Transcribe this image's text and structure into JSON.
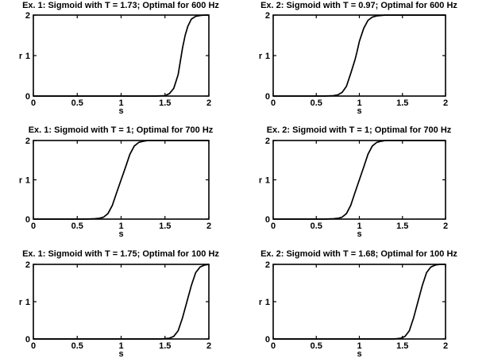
{
  "chart_data": [
    {
      "type": "line",
      "title": "Ex. 1: Sigmoid with T = 1.73; Optimal for 600 Hz",
      "xlabel": "s",
      "ylabel": "r",
      "xlim": [
        0,
        2
      ],
      "ylim": [
        0,
        2
      ],
      "xticks": [
        "0",
        "0.5",
        "1",
        "1.5",
        "2"
      ],
      "yticks": [
        "0",
        "1",
        "2"
      ],
      "grid": false,
      "series": [
        {
          "x": [
            0,
            1.4,
            1.5,
            1.55,
            1.6,
            1.65,
            1.7,
            1.73,
            1.76,
            1.8,
            1.85,
            1.9,
            1.95,
            2
          ],
          "y": [
            0,
            0,
            0.01,
            0.06,
            0.19,
            0.53,
            1.19,
            1.5,
            1.72,
            1.9,
            1.97,
            1.99,
            2,
            2
          ]
        }
      ]
    },
    {
      "type": "line",
      "title": "Ex. 2: Sigmoid with T = 0.97; Optimal for 600 Hz",
      "xlabel": "s",
      "ylabel": "r",
      "xlim": [
        0,
        2
      ],
      "ylim": [
        0,
        2
      ],
      "xticks": [
        "0",
        "0.5",
        "1",
        "1.5",
        "2"
      ],
      "yticks": [
        "0",
        "1",
        "2"
      ],
      "grid": false,
      "series": [
        {
          "x": [
            0,
            0.6,
            0.7,
            0.75,
            0.8,
            0.85,
            0.9,
            0.95,
            0.97,
            1.0,
            1.05,
            1.1,
            1.15,
            1.2,
            1.3,
            2
          ],
          "y": [
            0,
            0,
            0.01,
            0.03,
            0.09,
            0.24,
            0.56,
            0.9,
            1.07,
            1.35,
            1.67,
            1.87,
            1.95,
            1.98,
            2,
            2
          ]
        }
      ]
    },
    {
      "type": "line",
      "title": "Ex. 1: Sigmoid with T = 1; Optimal for 700 Hz",
      "xlabel": "s",
      "ylabel": "r",
      "xlim": [
        0,
        2
      ],
      "ylim": [
        0,
        2
      ],
      "xticks": [
        "0",
        "0.5",
        "1",
        "1.5",
        "2"
      ],
      "yticks": [
        "0",
        "1",
        "2"
      ],
      "grid": false,
      "series": [
        {
          "x": [
            0,
            0.6,
            0.7,
            0.75,
            0.8,
            0.85,
            0.9,
            0.95,
            1.0,
            1.05,
            1.1,
            1.15,
            1.2,
            1.25,
            1.3,
            2
          ],
          "y": [
            0,
            0,
            0.01,
            0.02,
            0.05,
            0.14,
            0.35,
            0.68,
            1.0,
            1.32,
            1.65,
            1.86,
            1.95,
            1.98,
            2,
            2
          ]
        }
      ]
    },
    {
      "type": "line",
      "title": "Ex. 2: Sigmoid with T = 1; Optimal for 700 Hz",
      "xlabel": "s",
      "ylabel": "r",
      "xlim": [
        0,
        2
      ],
      "ylim": [
        0,
        2
      ],
      "xticks": [
        "0",
        "0.5",
        "1",
        "1.5",
        "2"
      ],
      "yticks": [
        "0",
        "1",
        "2"
      ],
      "grid": false,
      "series": [
        {
          "x": [
            0,
            0.6,
            0.7,
            0.75,
            0.8,
            0.85,
            0.9,
            0.95,
            1.0,
            1.05,
            1.1,
            1.15,
            1.2,
            1.25,
            1.3,
            2
          ],
          "y": [
            0,
            0,
            0.01,
            0.02,
            0.05,
            0.14,
            0.35,
            0.68,
            1.0,
            1.32,
            1.65,
            1.86,
            1.95,
            1.98,
            2,
            2
          ]
        }
      ]
    },
    {
      "type": "line",
      "title": "Ex. 1: Sigmoid with T = 1.75; Optimal for 100 Hz",
      "xlabel": "s",
      "ylabel": "r",
      "xlim": [
        0,
        2
      ],
      "ylim": [
        0,
        2
      ],
      "xticks": [
        "0",
        "0.5",
        "1",
        "1.5",
        "2"
      ],
      "yticks": [
        "0",
        "1",
        "2"
      ],
      "grid": false,
      "series": [
        {
          "x": [
            0,
            1.45,
            1.55,
            1.6,
            1.65,
            1.7,
            1.75,
            1.8,
            1.85,
            1.9,
            1.95,
            2
          ],
          "y": [
            0,
            0,
            0.02,
            0.07,
            0.22,
            0.57,
            1.0,
            1.43,
            1.78,
            1.93,
            1.98,
            2
          ]
        }
      ]
    },
    {
      "type": "line",
      "title": "Ex. 2: Sigmoid with T = 1.68; Optimal for 100 Hz",
      "xlabel": "s",
      "ylabel": "r",
      "xlim": [
        0,
        2
      ],
      "ylim": [
        0,
        2
      ],
      "xticks": [
        "0",
        "0.5",
        "1",
        "1.5",
        "2"
      ],
      "yticks": [
        "0",
        "1",
        "2"
      ],
      "grid": false,
      "series": [
        {
          "x": [
            0,
            1.4,
            1.48,
            1.53,
            1.58,
            1.63,
            1.68,
            1.73,
            1.78,
            1.83,
            1.88,
            1.93,
            2
          ],
          "y": [
            0,
            0,
            0.02,
            0.07,
            0.22,
            0.57,
            1.0,
            1.43,
            1.78,
            1.93,
            1.98,
            2,
            2
          ]
        }
      ]
    }
  ]
}
